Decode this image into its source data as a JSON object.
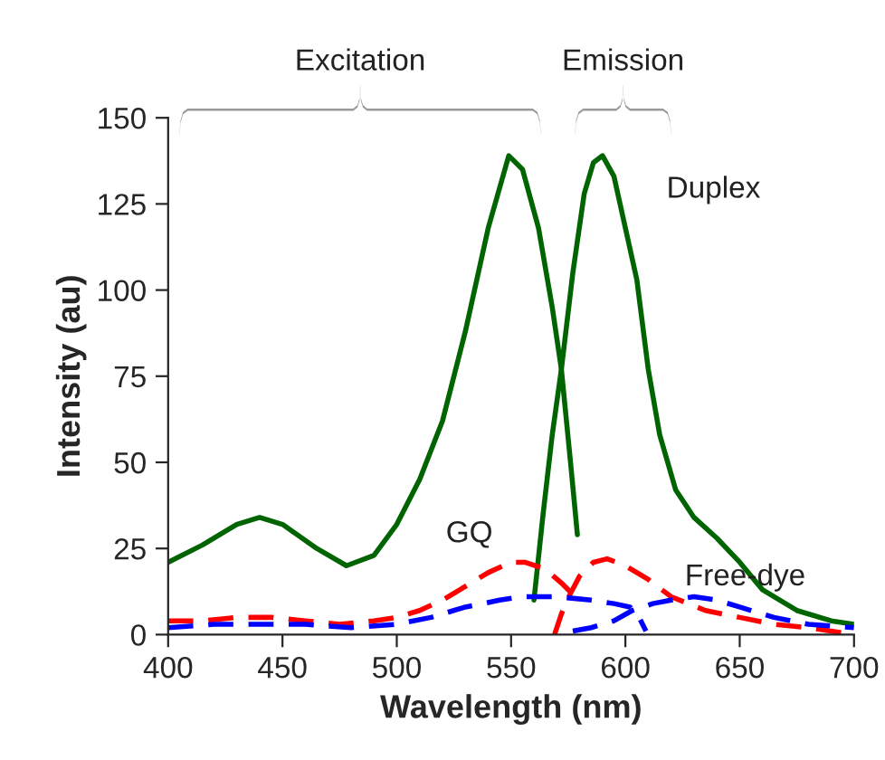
{
  "chart_data": {
    "type": "line",
    "xlabel": "Wavelength (nm)",
    "ylabel": "Intensity (au)",
    "xlim": [
      400,
      700
    ],
    "xticks": [
      400,
      450,
      500,
      550,
      600,
      650,
      700
    ],
    "ylim": [
      0,
      150
    ],
    "yticks": [
      0,
      25,
      50,
      75,
      100,
      125,
      150
    ],
    "grid": false,
    "legend": false,
    "marker": "none",
    "annotations": [
      "Excitation",
      "Emission"
    ],
    "series": [
      {
        "color": "#006400",
        "line_style": "solid",
        "x": [
          400,
          415,
          430,
          440,
          450,
          465,
          478,
          490,
          500,
          510,
          520,
          530,
          540,
          549,
          555,
          562,
          568,
          572,
          576,
          579
        ],
        "values": [
          21,
          26,
          32,
          34,
          32,
          25,
          20,
          23,
          32,
          45,
          62,
          88,
          118,
          139,
          135,
          118,
          95,
          77,
          50,
          29
        ]
      },
      {
        "name": "Duplex",
        "color": "#006400",
        "line_style": "solid",
        "x": [
          560,
          564,
          568,
          572,
          577,
          582,
          586,
          590,
          595,
          600,
          605,
          610,
          615,
          622,
          630,
          640,
          650,
          660,
          675,
          690,
          700
        ],
        "values": [
          10,
          35,
          58,
          77,
          105,
          128,
          137,
          139,
          133,
          118,
          103,
          77,
          58,
          42,
          34,
          28,
          21,
          13,
          7,
          4,
          3
        ]
      },
      {
        "name": "GQ",
        "color": "#ff0000",
        "line_style": "dashed",
        "x": [
          400,
          415,
          430,
          445,
          460,
          475,
          490,
          500,
          510,
          520,
          530,
          540,
          550,
          556,
          565,
          572,
          578
        ],
        "values": [
          4,
          4,
          5,
          5,
          4,
          3,
          4,
          5,
          7,
          10,
          14,
          18,
          21,
          21,
          19,
          15,
          11
        ]
      },
      {
        "color": "#ff0000",
        "line_style": "dashed",
        "x": [
          569,
          572,
          576,
          580,
          586,
          592,
          600,
          610,
          620,
          635,
          650,
          665,
          680,
          700
        ],
        "values": [
          0,
          6,
          12,
          17,
          21,
          22,
          20,
          16,
          11,
          7,
          5,
          3,
          2,
          0
        ]
      },
      {
        "color": "#0000ff",
        "line_style": "dashed",
        "x": [
          400,
          420,
          440,
          460,
          480,
          500,
          515,
          530,
          545,
          555,
          570,
          585,
          595,
          602,
          606,
          609
        ],
        "values": [
          2,
          3,
          3,
          3,
          2,
          3,
          5,
          8,
          10,
          11,
          11,
          10,
          9,
          8,
          5,
          1
        ]
      },
      {
        "name": "Free-dye",
        "color": "#0000ff",
        "line_style": "dashed",
        "x": [
          577,
          585,
          595,
          603,
          612,
          620,
          630,
          640,
          650,
          665,
          680,
          700
        ],
        "values": [
          1,
          2,
          4,
          7,
          9,
          10,
          11,
          10,
          8,
          5,
          3,
          2
        ]
      }
    ]
  }
}
